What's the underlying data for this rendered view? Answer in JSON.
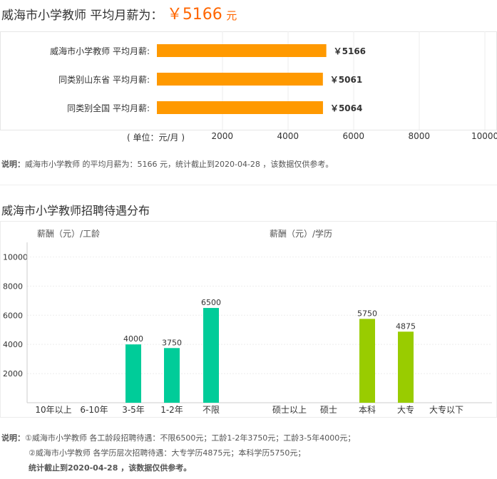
{
  "header": {
    "prefix": "威海市小学教师 平均月薪为：",
    "amount": "￥5166",
    "unit": "元"
  },
  "salary_compare": {
    "unit_label": "( 单位：元/月 )",
    "ticks": [
      "2000",
      "4000",
      "6000",
      "8000",
      "10000"
    ],
    "rows": [
      {
        "label": "威海市小学教师  平均月薪:",
        "value": 5166,
        "value_label": "￥5166"
      },
      {
        "label": "同类别山东省  平均月薪:",
        "value": 5061,
        "value_label": "￥5061"
      },
      {
        "label": "同类别全国  平均月薪:",
        "value": 5064,
        "value_label": "￥5064"
      }
    ],
    "bar_color": "#ff9900"
  },
  "note1": {
    "label": "说明：",
    "text": "威海市小学教师 的平均月薪为：5166 元，统计截止到2020-04-28 ，该数据仅供参考。"
  },
  "section2_title": "威海市小学教师招聘待遇分布",
  "chart_data": [
    {
      "type": "bar",
      "ylabel": "薪酬（元）/工龄",
      "categories": [
        "10年以上",
        "6-10年",
        "3-5年",
        "1-2年",
        "不限"
      ],
      "values": [
        null,
        null,
        4000,
        3750,
        6500
      ],
      "ylim": [
        0,
        11000
      ],
      "yticks": [
        "2000",
        "4000",
        "6000",
        "8000",
        "10000"
      ],
      "color": "#00cc99",
      "grid": true
    },
    {
      "type": "bar",
      "ylabel": "薪酬（元）/学历",
      "categories": [
        "硕士以上",
        "硕士",
        "本科",
        "大专",
        "大专以下"
      ],
      "values": [
        null,
        null,
        5750,
        4875,
        null
      ],
      "ylim": [
        0,
        11000
      ],
      "color": "#99cc00",
      "grid": true
    }
  ],
  "note2": {
    "label": "说明：",
    "line1": "①威海市小学教师 各工龄段招聘待遇：不限6500元；工龄1-2年3750元；工龄3-5年4000元；",
    "line2": "②威海市小学教师 各学历层次招聘待遇：大专学历4875元；本科学历5750元；",
    "line3": "统计截止到2020-04-28 ，该数据仅供参考。"
  }
}
